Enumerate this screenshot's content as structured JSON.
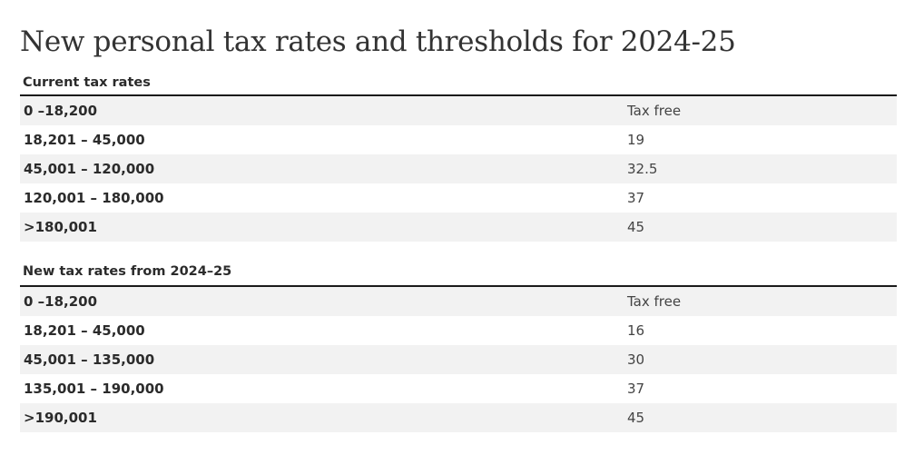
{
  "title": "New personal tax rates and thresholds for 2024-25",
  "sections": [
    {
      "heading": "Current tax rates",
      "rows": [
        {
          "range": "0 –18,200",
          "rate": "Tax free"
        },
        {
          "range": "18,201 – 45,000",
          "rate": "19"
        },
        {
          "range": "45,001 – 120,000",
          "rate": "32.5"
        },
        {
          "range": "120,001 – 180,000",
          "rate": "37"
        },
        {
          "range": ">180,001",
          "rate": "45"
        }
      ]
    },
    {
      "heading": "New tax rates from 2024–25",
      "rows": [
        {
          "range": "0 –18,200",
          "rate": "Tax free"
        },
        {
          "range": "18,201 – 45,000",
          "rate": "16"
        },
        {
          "range": "45,001 – 135,000",
          "rate": "30"
        },
        {
          "range": "135,001 – 190,000",
          "rate": "37"
        },
        {
          "range": ">190,001",
          "rate": "45"
        }
      ]
    }
  ]
}
